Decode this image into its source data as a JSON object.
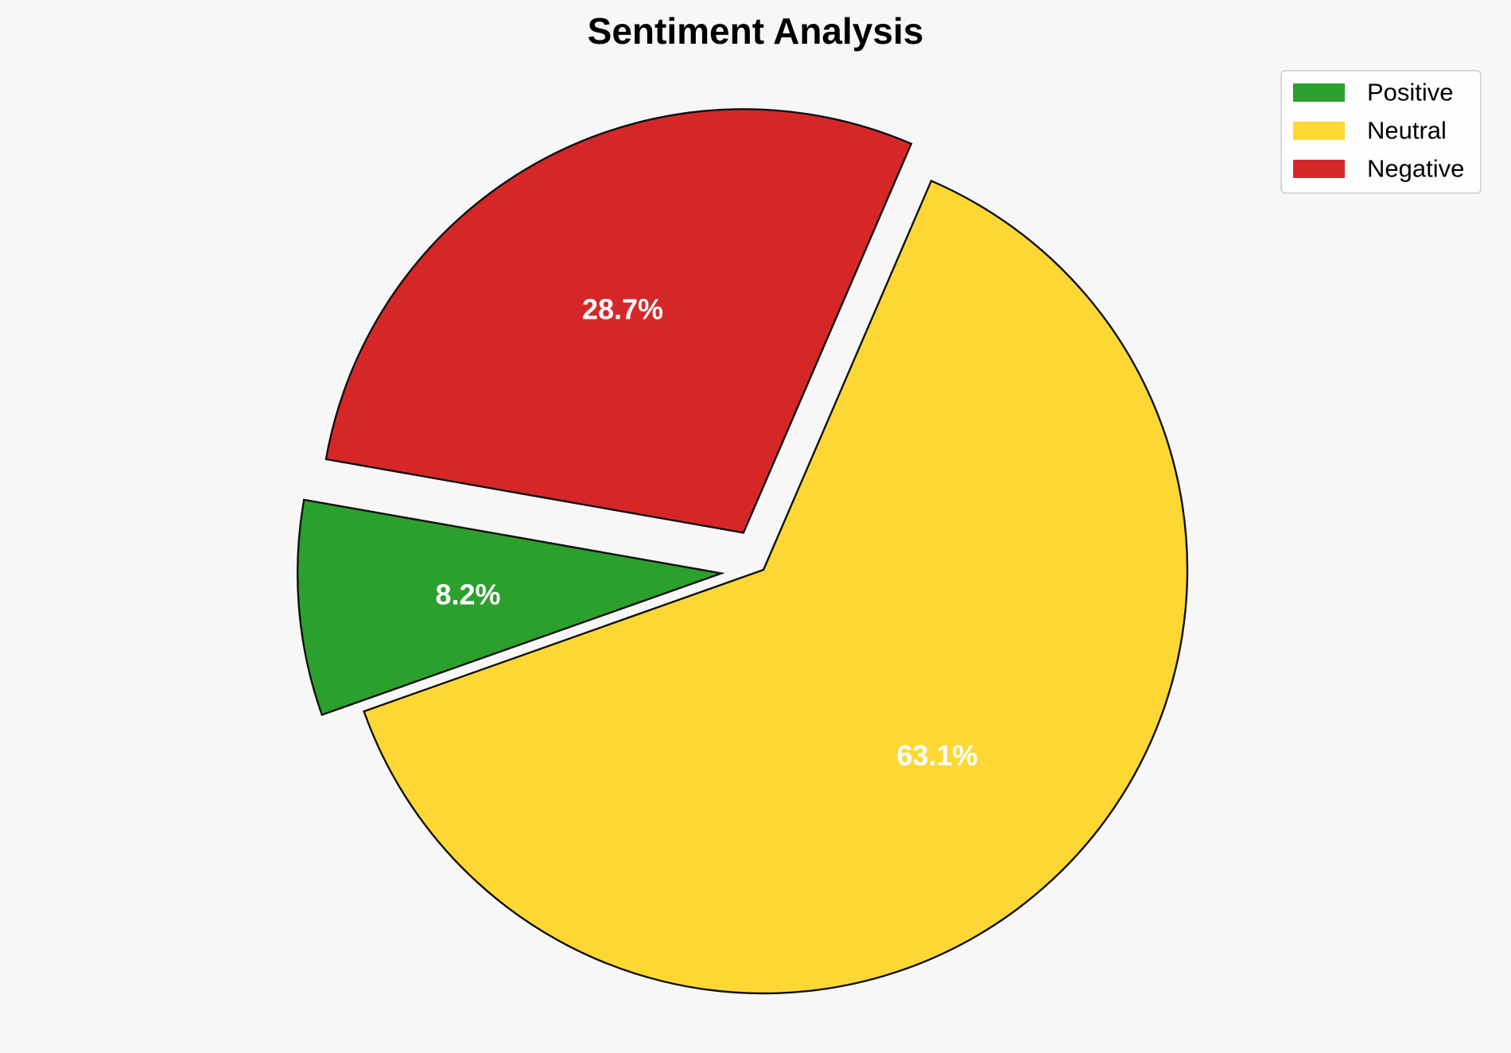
{
  "chart_data": {
    "type": "pie",
    "title": "Sentiment Analysis",
    "start_angle_deg": 170,
    "direction": "counterclockwise",
    "legend_position": "top-right",
    "slices": [
      {
        "label": "Positive",
        "value": 8.2,
        "display": "8.2%",
        "color": "#2ca02c",
        "exploded": true
      },
      {
        "label": "Neutral",
        "value": 63.1,
        "display": "63.1%",
        "color": "#fdd835",
        "exploded": false
      },
      {
        "label": "Negative",
        "value": 28.7,
        "display": "28.7%",
        "color": "#d62728",
        "exploded": true
      }
    ],
    "edge_color": "#111111",
    "label_color": "#ffffff"
  }
}
